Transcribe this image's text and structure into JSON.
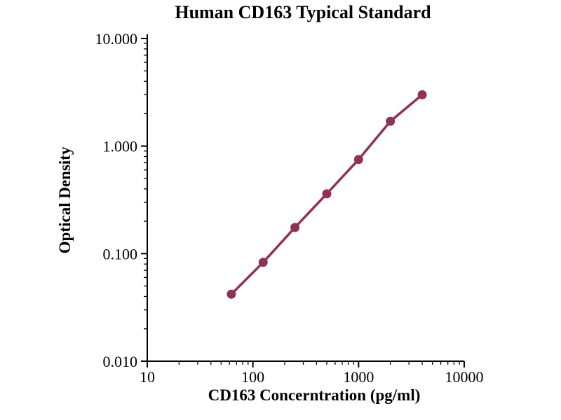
{
  "chart_data": {
    "type": "line",
    "title": "Human CD163 Typical Standard",
    "xlabel": "CD163 Concerntration (pg/ml)",
    "ylabel": "Optical Density",
    "x_scale": "log",
    "y_scale": "log",
    "xlim": [
      10,
      10000
    ],
    "ylim": [
      0.01,
      10
    ],
    "grid": false,
    "legend": "none",
    "x": [
      62.5,
      125,
      250,
      500,
      1000,
      2000,
      4000
    ],
    "y": [
      0.042,
      0.083,
      0.175,
      0.36,
      0.75,
      1.7,
      3.0
    ],
    "x_ticks": [
      {
        "value": 10,
        "label": "10"
      },
      {
        "value": 100,
        "label": "100"
      },
      {
        "value": 1000,
        "label": "1000"
      },
      {
        "value": 10000,
        "label": "10000"
      }
    ],
    "y_ticks": [
      {
        "value": 0.01,
        "label": "0.010"
      },
      {
        "value": 0.1,
        "label": "0.100"
      },
      {
        "value": 1,
        "label": "1.000"
      },
      {
        "value": 10,
        "label": "10.000"
      }
    ],
    "style": {
      "line_color": "#8E3257",
      "marker_color": "#8E3257",
      "axis_color": "#000000",
      "marker": "circle"
    }
  }
}
